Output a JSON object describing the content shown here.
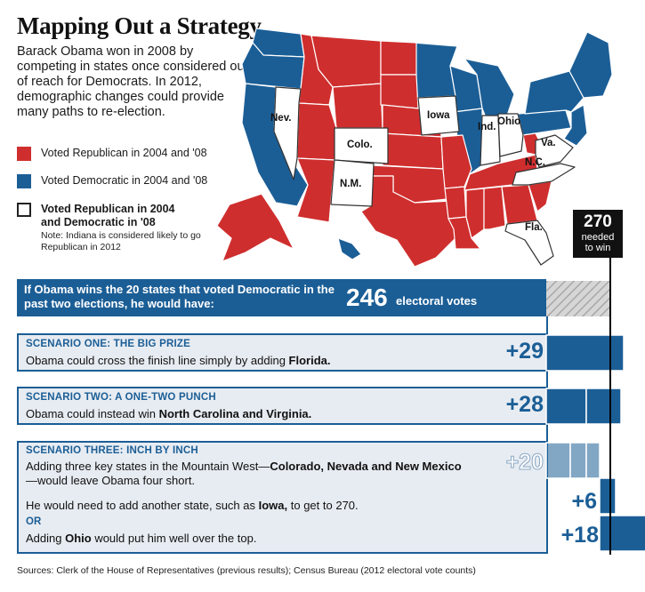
{
  "title": "Mapping Out a Strategy",
  "intro": "Barack Obama won in 2008 by competing in states once considered out of reach for Democrats. In 2012, demographic changes could provide many paths to re-election.",
  "legend": {
    "republican": "Voted Republican in 2004 and '08",
    "democratic": "Voted Democratic in 2004 and '08",
    "switched_line1": "Voted Republican in 2004",
    "switched_line2": "and Democratic in '08",
    "note": "Note: Indiana is considered likely to go Republican in 2012"
  },
  "colors": {
    "republican": "#cf2e2e",
    "democratic": "#1b5e96",
    "switched": "#ffffff",
    "scenario_bg": "#e7ecf2",
    "hatch": "#b8b8b8"
  },
  "map_labels": [
    "Nev.",
    "Colo.",
    "N.M.",
    "Iowa",
    "Ind.",
    "Ohio",
    "Va.",
    "N.C.",
    "Fla."
  ],
  "target": {
    "value": "270",
    "label_line1": "needed",
    "label_line2": "to win"
  },
  "base": {
    "text": "If Obama wins the 20 states that voted Democratic in the past two elections, he would have:",
    "value": "246",
    "unit": "electoral votes"
  },
  "scenarios": [
    {
      "heading": "SCENARIO ONE: THE BIG PRIZE",
      "text_pre": "Obama could cross the finish line simply by adding ",
      "text_bold": "Florida."
    },
    {
      "heading": "SCENARIO TWO: A ONE-TWO PUNCH",
      "text_pre": "Obama could instead win ",
      "text_bold": "North Carolina and Virginia."
    },
    {
      "heading": "SCENARIO THREE: INCH BY INCH",
      "text_pre": "Adding three key states in the Mountain West—",
      "text_bold": "Colorado, Nevada and New Mexico",
      "text_post": "—would leave Obama four short.",
      "line2_pre": "He would need to add another state, such as ",
      "line2_bold": "Iowa,",
      "line2_post": " to get to 270.",
      "or": "OR",
      "line3_pre": "Adding ",
      "line3_bold": "Ohio",
      "line3_post": " would put him well over the top."
    }
  ],
  "chart_data": {
    "type": "bar",
    "base": 246,
    "target": 270,
    "categories": [
      "Base",
      "Scenario one",
      "Scenario two",
      "Scenario three",
      "Scenario three + Iowa",
      "Scenario three + Ohio"
    ],
    "additions": [
      {
        "label": "+29",
        "value": 29,
        "segments": [
          29
        ]
      },
      {
        "label": "+28",
        "value": 28,
        "segments": [
          15,
          13
        ]
      },
      {
        "label": "+20",
        "value": 20,
        "segments": [
          9,
          6,
          5
        ]
      },
      {
        "label": "+6",
        "value": 6,
        "segments": [
          6
        ]
      },
      {
        "label": "+18",
        "value": 18,
        "segments": [
          18
        ]
      }
    ]
  },
  "source": "Sources: Clerk of the House of Representatives (previous results); Census Bureau (2012 electoral vote counts)"
}
